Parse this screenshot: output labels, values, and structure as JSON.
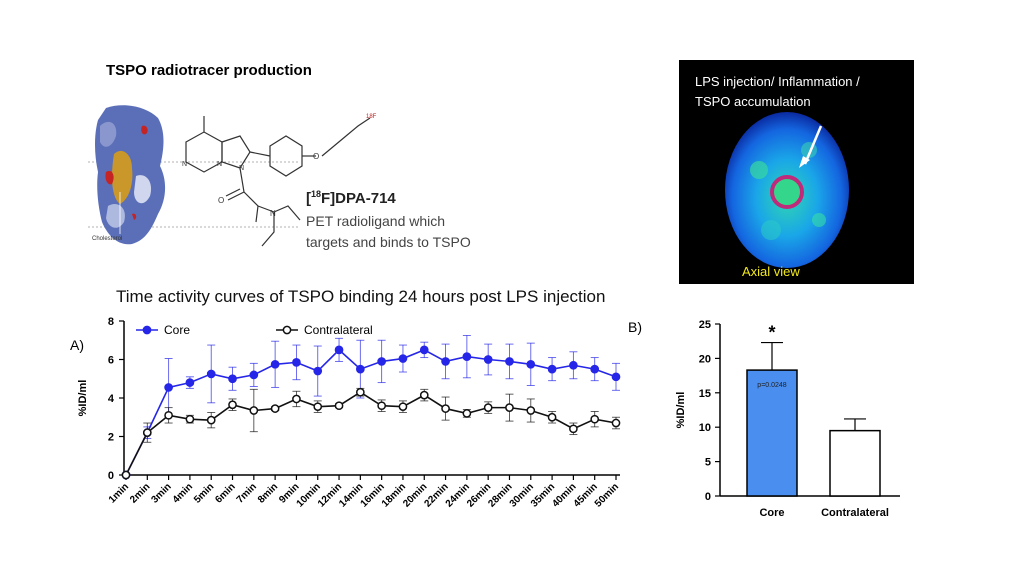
{
  "production": {
    "title": "TSPO radiotracer production",
    "protein_label": "Cholesterol",
    "fluorine_label": "18F",
    "ligand_sup": "18",
    "ligand_name": "F]DPA-714",
    "ligand_bracket": "[",
    "description": [
      "PET radioligand which",
      "targets and binds to TSPO"
    ]
  },
  "pet_image": {
    "annotation": [
      "LPS injection/ Inflammation /",
      "TSPO accumulation"
    ],
    "view_label": "Axial view"
  },
  "chart_title": "Time activity curves of TSPO binding 24 hours post LPS injection",
  "colors": {
    "core": "#2626e8",
    "contralateral": "#111111",
    "bar_core": "#4a8ef0",
    "pet_bg": "#000000",
    "roi": "#c02a7a"
  },
  "chart_data": [
    {
      "panel_label": "A)",
      "type": "line",
      "ylabel": "%ID/ml",
      "ylim": [
        0,
        8
      ],
      "yticks": [
        0,
        2,
        4,
        6,
        8
      ],
      "categories": [
        "1min",
        "2min",
        "3min",
        "4min",
        "5min",
        "6min",
        "7min",
        "8min",
        "9min",
        "10min",
        "12min",
        "14min",
        "16min",
        "18min",
        "20min",
        "22min",
        "24min",
        "26min",
        "28min",
        "30min",
        "35min",
        "40min",
        "45min",
        "50min"
      ],
      "legend_position": "top-left",
      "series": [
        {
          "name": "Core",
          "marker": "filled-circle",
          "values": [
            0,
            2.2,
            4.55,
            4.8,
            5.25,
            5.0,
            5.2,
            5.75,
            5.85,
            5.4,
            6.5,
            5.5,
            5.9,
            6.05,
            6.5,
            5.9,
            6.15,
            6.0,
            5.9,
            5.75,
            5.5,
            5.7,
            5.5,
            5.1
          ],
          "errors": [
            0,
            0.3,
            1.5,
            0.3,
            1.5,
            0.6,
            0.6,
            1.2,
            0.9,
            1.3,
            0.6,
            1.5,
            1.1,
            0.7,
            0.4,
            0.9,
            1.1,
            0.8,
            0.9,
            1.1,
            0.6,
            0.7,
            0.6,
            0.7
          ]
        },
        {
          "name": "Contralateral",
          "marker": "open-circle",
          "values": [
            0,
            2.2,
            3.1,
            2.9,
            2.85,
            3.65,
            3.35,
            3.45,
            3.95,
            3.55,
            3.6,
            4.3,
            3.6,
            3.55,
            4.15,
            3.45,
            3.2,
            3.5,
            3.5,
            3.35,
            3.0,
            2.4,
            2.9,
            2.7
          ],
          "errors": [
            0,
            0.5,
            0.4,
            0.2,
            0.4,
            0.3,
            1.1,
            0.1,
            0.4,
            0.3,
            0.1,
            0.2,
            0.3,
            0.3,
            0.3,
            0.6,
            0.2,
            0.3,
            0.7,
            0.6,
            0.3,
            0.3,
            0.4,
            0.3
          ]
        }
      ]
    },
    {
      "panel_label": "B)",
      "type": "bar",
      "ylabel": "%ID/ml",
      "ylim": [
        0,
        25
      ],
      "yticks": [
        0,
        5,
        10,
        15,
        20,
        25
      ],
      "categories": [
        "Core",
        "Contralateral"
      ],
      "values": [
        18.3,
        9.5
      ],
      "errors": [
        4.0,
        1.7
      ],
      "annotations": {
        "significance": "*",
        "p_value": "p=0.0248"
      }
    }
  ]
}
